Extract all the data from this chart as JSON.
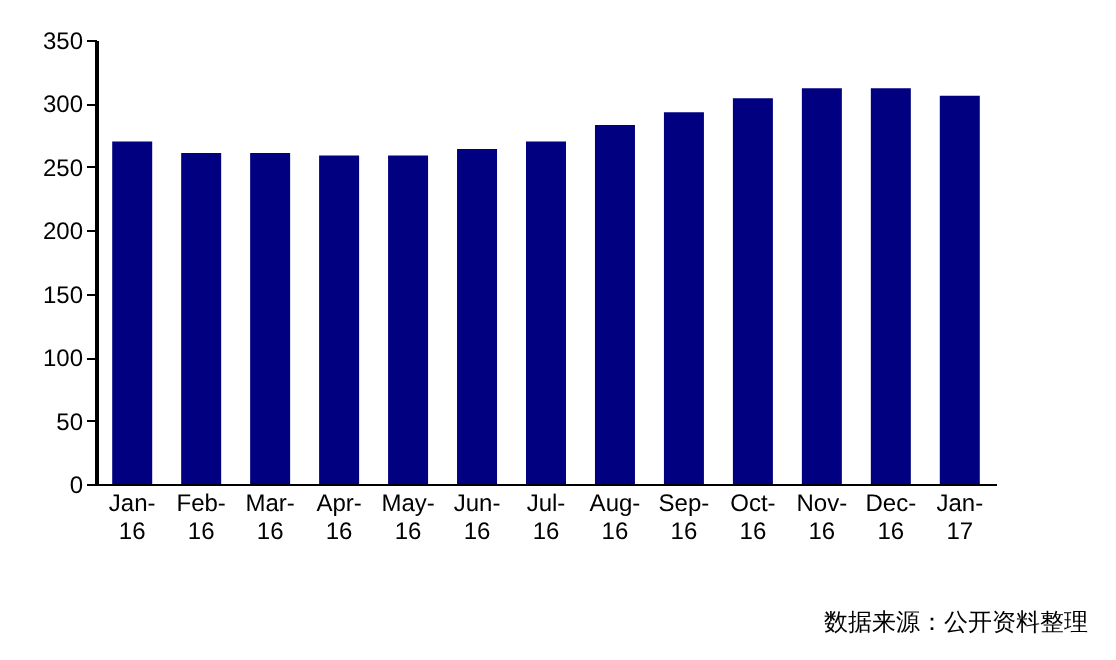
{
  "chart_data": {
    "type": "bar",
    "categories": [
      "Jan-16",
      "Feb-16",
      "Mar-16",
      "Apr-16",
      "May-16",
      "Jun-16",
      "Jul-16",
      "Aug-16",
      "Sep-16",
      "Oct-16",
      "Nov-16",
      "Dec-16",
      "Jan-17"
    ],
    "values": [
      270,
      261,
      261,
      259,
      259,
      264,
      270,
      283,
      293,
      304,
      312,
      312,
      306
    ],
    "color": "#000080",
    "ylim": [
      0,
      350
    ],
    "yticks": [
      0,
      50,
      100,
      150,
      200,
      250,
      300,
      350
    ],
    "grid": false,
    "annotations": [
      "数据来源：公开资料整理"
    ]
  }
}
